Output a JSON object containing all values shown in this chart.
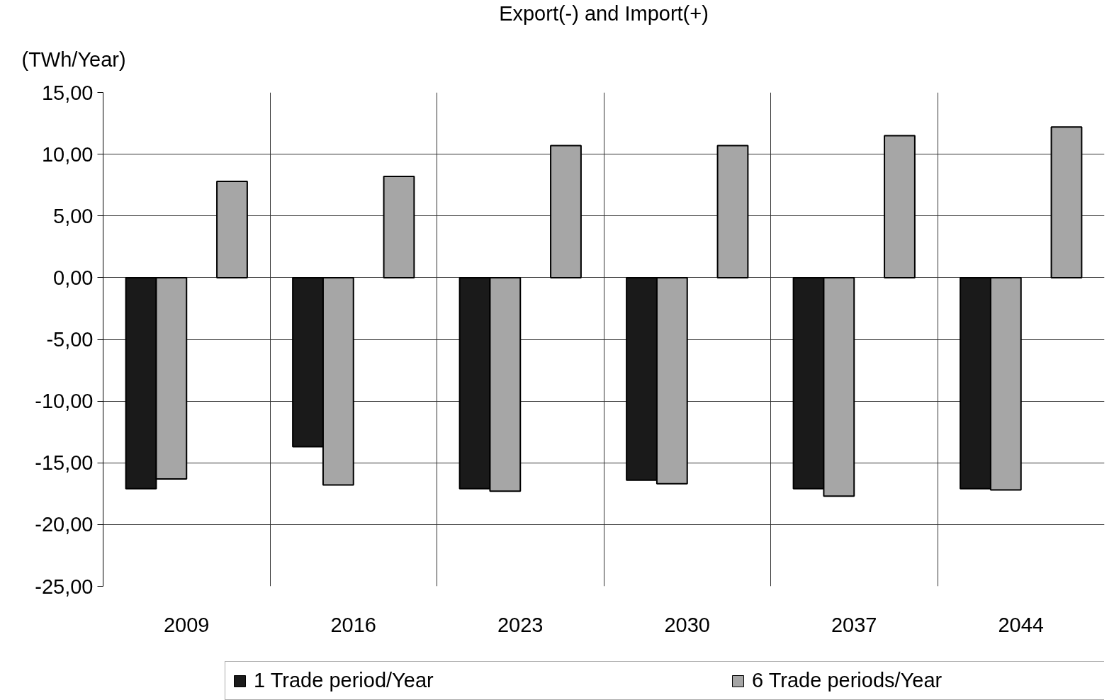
{
  "chart_data": {
    "type": "bar",
    "title": "Export(-) and Import(+)",
    "ylabel": "(TWh/Year)",
    "categories": [
      "2009",
      "2016",
      "2023",
      "2030",
      "2037",
      "2044"
    ],
    "series": [
      {
        "name": "1 Trade period/Year",
        "color": "#1a1a1a",
        "values": [
          -17.1,
          -13.7,
          -17.1,
          -16.4,
          -17.1,
          -17.1
        ]
      },
      {
        "name": "6 Trade periods/Year",
        "color": "#a6a6a6",
        "values": [
          -16.3,
          -16.8,
          -17.3,
          -16.7,
          -17.7,
          -17.2
        ]
      },
      {
        "values": [
          null,
          null,
          null,
          null,
          null,
          null
        ]
      },
      {
        "color": "#a6a6a6",
        "values": [
          7.8,
          8.2,
          10.7,
          10.7,
          11.5,
          12.2
        ]
      }
    ],
    "ylim": [
      -25,
      15
    ],
    "yticks": [
      {
        "value": -25,
        "label": "-25,00"
      },
      {
        "value": -20,
        "label": "-20,00"
      },
      {
        "value": -15,
        "label": "-15,00"
      },
      {
        "value": -10,
        "label": "-10,00"
      },
      {
        "value": -5,
        "label": "-5,00"
      },
      {
        "value": 0,
        "label": "0,00"
      },
      {
        "value": 5,
        "label": "5,00"
      },
      {
        "value": 10,
        "label": "10,00"
      },
      {
        "value": 15,
        "label": "15,00"
      }
    ],
    "grid": true,
    "legend": "bottom"
  }
}
